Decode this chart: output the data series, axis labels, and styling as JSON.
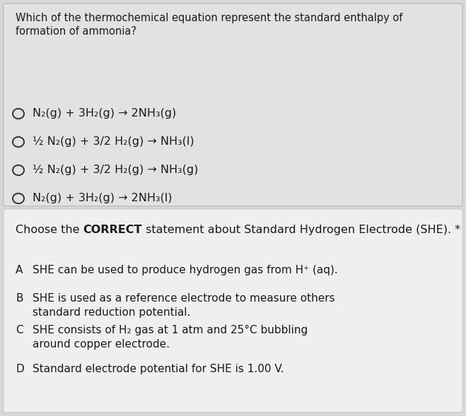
{
  "bg_color": "#d8d8d8",
  "box1_bg": "#e2e2e2",
  "box2_bg": "#efefef",
  "box1_edge": "#bbbbbb",
  "box2_edge": "#cccccc",
  "q1_title": "Which of the thermochemical equation represent the standard enthalpy of\nformation of ammonia?",
  "q1_options": [
    "N₂(g) + 3H₂(g) → 2NH₃(g)",
    "½ N₂(g) + 3/2 H₂(g) → NH₃(l)",
    "½ N₂(g) + 3/2 H₂(g) → NH₃(g)",
    "N₂(g) + 3H₂(g) → 2NH₃(l)"
  ],
  "q2_title_parts": [
    "Choose the ",
    "CORRECT",
    " statement about Standard Hydrogen Electrode (SHE). *"
  ],
  "q2_title_bold": [
    false,
    true,
    false
  ],
  "q2_options": [
    [
      "A",
      "SHE can be used to produce hydrogen gas from H⁺ (aq)."
    ],
    [
      "B",
      "SHE is used as a reference electrode to measure others\nstandard reduction potential."
    ],
    [
      "C",
      "SHE consists of H₂ gas at 1 atm and 25°C bubbling\naround copper electrode."
    ],
    [
      "D",
      "Standard electrode potential for SHE is 1.00 V."
    ]
  ],
  "font_size_q1_title": 10.5,
  "font_size_q1_options": 11.5,
  "font_size_q2_title": 11.5,
  "font_size_q2_options": 11.0,
  "text_color": "#1a1a1a",
  "circle_color": "#333333",
  "fig_w": 6.59,
  "fig_h": 5.89,
  "dpi": 100
}
